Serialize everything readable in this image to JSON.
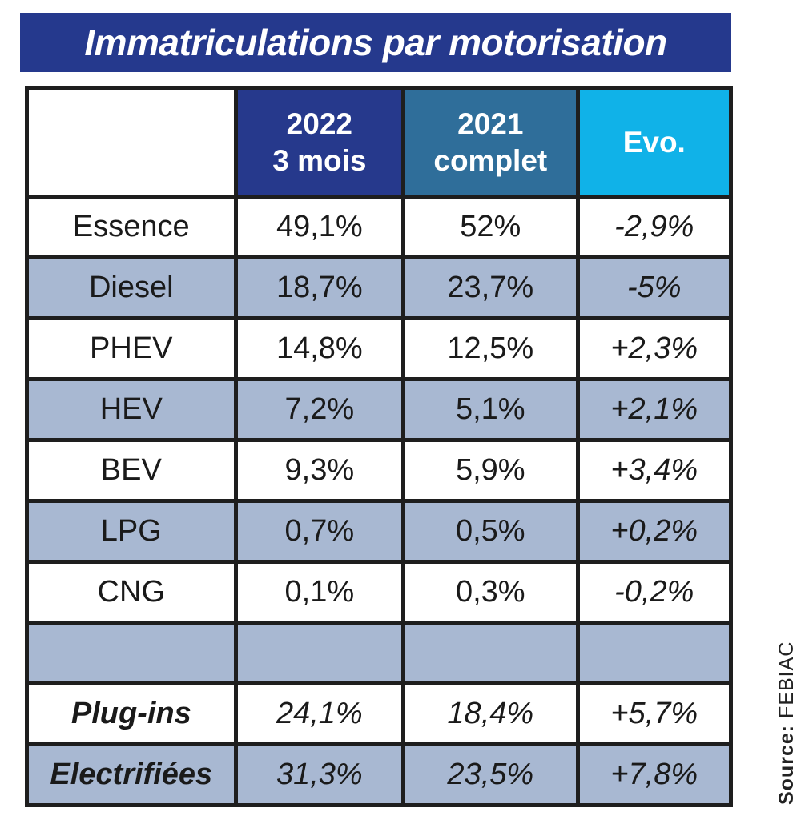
{
  "title": "Immatriculations par motorisation",
  "colors": {
    "title_bg": "#25398d",
    "col_2022": "#26398c",
    "col_2021": "#2f6e9a",
    "col_evo": "#10b2e8",
    "band": "#a8b8d2"
  },
  "chart_data": {
    "type": "table",
    "title": "Immatriculations par motorisation",
    "columns": [
      {
        "line1": "",
        "line2": ""
      },
      {
        "line1": "2022",
        "line2": "3 mois"
      },
      {
        "line1": "2021",
        "line2": "complet"
      },
      {
        "line1": "Evo.",
        "line2": ""
      }
    ],
    "rows": [
      [
        "Essence",
        "49,1%",
        "52%",
        "-2,9%"
      ],
      [
        "Diesel",
        "18,7%",
        "23,7%",
        "-5%"
      ],
      [
        "PHEV",
        "14,8%",
        "12,5%",
        "+2,3%"
      ],
      [
        "HEV",
        "7,2%",
        "5,1%",
        "+2,1%"
      ],
      [
        "BEV",
        "9,3%",
        "5,9%",
        "+3,4%"
      ],
      [
        "LPG",
        "0,7%",
        "0,5%",
        "+0,2%"
      ],
      [
        "CNG",
        "0,1%",
        "0,3%",
        "-0,2%"
      ],
      [
        "",
        "",
        "",
        ""
      ],
      [
        "Plug-ins",
        "24,1%",
        "18,4%",
        "+5,7%"
      ],
      [
        "Electrifiées",
        "31,3%",
        "23,5%",
        "+7,8%"
      ]
    ]
  },
  "source": {
    "label": "Source:",
    "value": "FEBIAC"
  }
}
